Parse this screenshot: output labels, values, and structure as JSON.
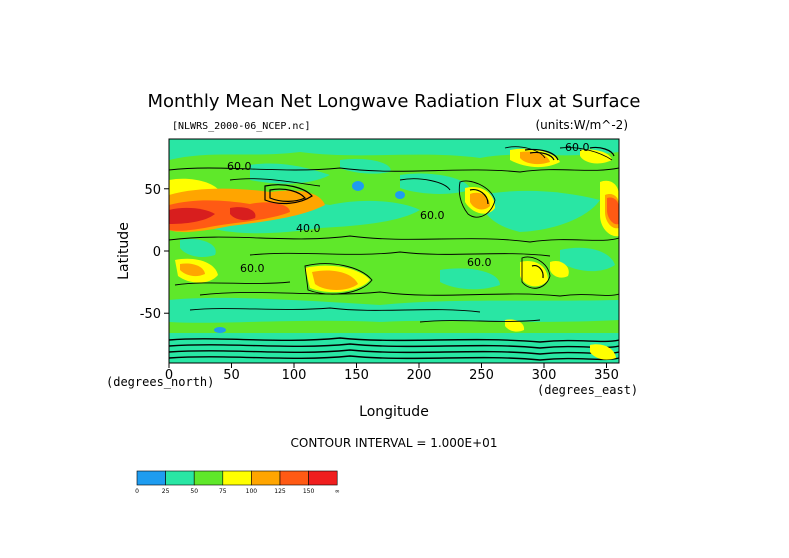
{
  "chart_data": {
    "type": "heatmap",
    "title": "Monthly Mean Net Longwave Radiation Flux at Surface",
    "subtitle_left": "[NLWRS_2000-06_NCEP.nc]",
    "subtitle_right": "(units:W/m^-2)",
    "xlabel": "Longitude",
    "ylabel": "Latitude",
    "x_units": "(degrees_east)",
    "y_units": "(degrees_north)",
    "xlim": [
      0,
      360
    ],
    "ylim": [
      -90,
      90
    ],
    "x_ticks": [
      "0",
      "50",
      "100",
      "150",
      "200",
      "250",
      "300",
      "350"
    ],
    "y_ticks": [
      "50",
      "0",
      "-50"
    ],
    "contour_interval_label": "CONTOUR INTERVAL = 1.000E+01",
    "contour_labels": [
      "60.0",
      "60.0",
      "60.0",
      "60.0",
      "60.0",
      "40.0"
    ],
    "colorbar": {
      "labels": [
        "0",
        "25",
        "50",
        "75",
        "100",
        "125",
        "150",
        "∞"
      ],
      "colors": [
        "#1e9cf0",
        "#29e6a4",
        "#5fe82a",
        "#ffff00",
        "#ffa500",
        "#ff5a14",
        "#f01e1e"
      ]
    },
    "grid": false,
    "legend": "bottom-left colorbar"
  }
}
